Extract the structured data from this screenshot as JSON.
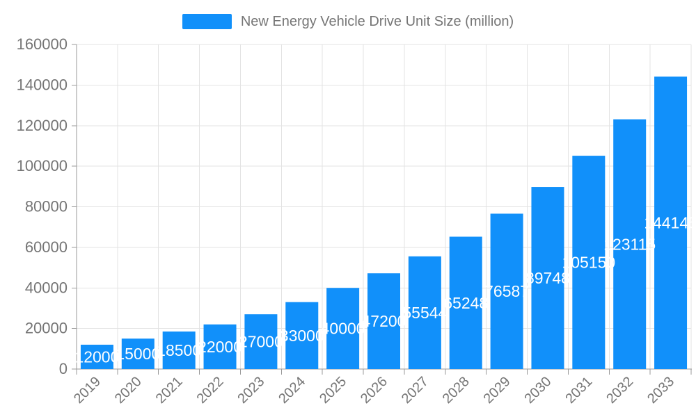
{
  "legend": {
    "label": "New Energy Vehicle Drive Unit Size (million)"
  },
  "chart_data": {
    "type": "bar",
    "title": "",
    "categories": [
      "2019",
      "2020",
      "2021",
      "2022",
      "2023",
      "2024",
      "2025",
      "2026",
      "2027",
      "2028",
      "2029",
      "2030",
      "2031",
      "2032",
      "2033"
    ],
    "series": [
      {
        "name": "New Energy Vehicle Drive Unit Size (million)",
        "values": [
          12000,
          15000,
          18500,
          22000,
          27000,
          33000,
          40000,
          47200,
          55544,
          65248,
          76587,
          89748,
          105150,
          123115,
          144145
        ]
      }
    ],
    "ylim": [
      0,
      160000
    ],
    "ytick_step": 20000,
    "ytick_labels": [
      "0",
      "20000",
      "40000",
      "60000",
      "80000",
      "100000",
      "120000",
      "140000",
      "160000"
    ],
    "grid": true,
    "legend_position": "top-center",
    "x_label_rotation": 45,
    "bar_color": "#1190fa",
    "bar_label_color": "#ffffff",
    "axis_text_color": "#757575",
    "axis_line_color": "#999999",
    "grid_color": "#e3e3e3"
  }
}
